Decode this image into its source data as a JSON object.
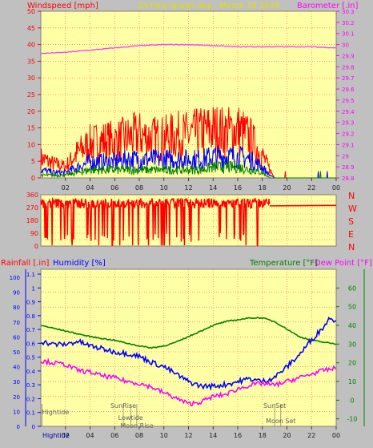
{
  "header": {
    "left": "Windspeed [mph]",
    "center": "24 hour graph day : March 18 2018",
    "right": "Barometer [.in]"
  },
  "colors": {
    "bg": "#c0c0c0",
    "plot": "#ffffa6",
    "grid": "#e06060",
    "header_text": "#ff0000",
    "title_text": "#e0e000",
    "baro_text": "#ff00ff",
    "wind_gust": "#ff0000",
    "wind_avg": "#0000ff",
    "wind_low": "#008000",
    "baro_line": "#ff40ff",
    "dir_line": "#ff0000",
    "humidity": "#0000ff",
    "temperature": "#008000",
    "dewpoint": "#ff00ff",
    "rain_text": "#ff0000",
    "hum_text": "#0000ff",
    "temp_text": "#008000",
    "dew_text": "#ff00ff",
    "event_text": "#606060",
    "axis_red": "#ff0000",
    "axis_blue": "#0000ff",
    "axis_green": "#008000",
    "axis_magenta": "#ff00ff"
  },
  "time_labels": [
    "02",
    "04",
    "06",
    "08",
    "10",
    "12",
    "14",
    "16",
    "18",
    "20",
    "22",
    "00"
  ],
  "lower_time_labels": [
    "02",
    "04",
    "06",
    "08",
    "10",
    "12",
    "14",
    "16",
    "18",
    "20",
    "22",
    "00"
  ],
  "chart_data": [
    {
      "type": "line",
      "name": "wind-barometer",
      "x_unit": "hour",
      "xlim": [
        0,
        24
      ],
      "ylabel": "Windspeed [mph]",
      "ylim": [
        0,
        50
      ],
      "y_ticks": [
        0,
        5,
        10,
        15,
        20,
        25,
        30,
        35,
        40,
        45,
        50
      ],
      "y2label": "Barometer [.in]",
      "y2lim": [
        28.8,
        30.3
      ],
      "y2_ticks": [
        "28.8",
        "28.9",
        "29",
        "29.1",
        "29.2",
        "29.3",
        "29.4",
        "29.5",
        "29.6",
        "29.7",
        "29.8",
        "29.9",
        "30",
        "30.1",
        "30.2",
        "30.3"
      ],
      "gust_envelope": {
        "x": [
          0,
          1,
          2,
          3,
          4,
          5,
          6,
          7,
          8,
          9,
          10,
          11,
          12,
          13,
          14,
          15,
          16,
          17,
          18,
          18.6,
          19,
          24
        ],
        "y": [
          7,
          5,
          4,
          9,
          12,
          13,
          13,
          14,
          15,
          14,
          14,
          15,
          15,
          16,
          17,
          16,
          17,
          14,
          8,
          3,
          0,
          0
        ]
      },
      "avg_envelope": {
        "x": [
          0,
          1,
          2,
          3,
          4,
          5,
          6,
          7,
          8,
          9,
          10,
          11,
          12,
          13,
          14,
          15,
          16,
          17,
          18,
          18.6,
          19,
          24
        ],
        "y": [
          3,
          2,
          2,
          4,
          6,
          6,
          6,
          7,
          7,
          7,
          7,
          7,
          7,
          7,
          8,
          8,
          8,
          7,
          4,
          1,
          0,
          0
        ]
      },
      "low_envelope": {
        "x": [
          0,
          1,
          2,
          3,
          4,
          5,
          6,
          7,
          8,
          9,
          10,
          11,
          12,
          13,
          14,
          15,
          16,
          17,
          18,
          18.6,
          19,
          24
        ],
        "y": [
          1,
          1,
          1,
          2,
          3,
          3,
          3,
          3,
          3,
          3,
          3,
          3,
          3,
          3,
          4,
          4,
          4,
          3,
          2,
          0,
          0,
          0
        ]
      },
      "barometer": {
        "x": [
          0,
          2,
          4,
          6,
          8,
          10,
          12,
          14,
          16,
          18,
          20,
          22,
          24
        ],
        "y": [
          29.92,
          29.93,
          29.95,
          29.97,
          29.99,
          30.0,
          30.0,
          29.99,
          29.98,
          29.98,
          29.98,
          29.98,
          29.97
        ]
      }
    },
    {
      "type": "line",
      "name": "wind-direction",
      "x_unit": "hour",
      "xlim": [
        0,
        24
      ],
      "ylim": [
        0,
        360
      ],
      "y_ticks": [
        0,
        45,
        90,
        135,
        180,
        225,
        270,
        315,
        360
      ],
      "right_labels": [
        "N",
        "W",
        "S",
        "E",
        "N"
      ],
      "direction": {
        "x": [
          0,
          18.6,
          18.6,
          24
        ],
        "y": [
          300,
          300,
          280,
          285
        ],
        "active_until": 18.6
      }
    },
    {
      "type": "line",
      "name": "humidity-temperature",
      "x_unit": "hour",
      "xlim": [
        0,
        24
      ],
      "left_label": "Rainfall [.in]",
      "left2_label": "Humidity [%]",
      "rain_ticks": [
        "0",
        "0.1",
        "0.2",
        "0.3",
        "0.4",
        "0.5",
        "0.6",
        "0.7",
        "0.8",
        "0.9",
        "1",
        "1.1"
      ],
      "humidity_ticks": [
        0,
        10,
        20,
        30,
        40,
        50,
        60,
        70,
        80,
        90,
        100
      ],
      "humidity_lim": [
        0,
        100
      ],
      "right_label": "Temperature [°F]",
      "right2_label": "Dew Point [°F]",
      "temp_ticks": [
        -10,
        0,
        10,
        20,
        30,
        40,
        50,
        60
      ],
      "temp_lim": [
        -14,
        70
      ],
      "humidity": {
        "x": [
          0,
          1,
          2,
          3,
          4,
          5,
          6,
          7,
          8,
          9,
          10,
          11,
          12,
          13,
          14,
          15,
          16,
          17,
          18,
          19,
          20,
          21,
          22,
          23,
          23.5,
          24
        ],
        "y": [
          57,
          55,
          55,
          57,
          54,
          52,
          50,
          49,
          47,
          43,
          40,
          35,
          30,
          27,
          27,
          28,
          30,
          32,
          30,
          33,
          40,
          48,
          58,
          67,
          73,
          71
        ]
      },
      "temperature": {
        "x": [
          0,
          2,
          4,
          6,
          8,
          9,
          10,
          11,
          12,
          13,
          14,
          15,
          16,
          17,
          18,
          19,
          20,
          21,
          22,
          23,
          24
        ],
        "y": [
          40,
          37,
          34,
          32,
          29,
          28,
          29,
          31,
          34,
          37,
          40,
          42,
          43,
          44,
          44,
          42,
          38,
          34,
          32,
          31,
          30
        ]
      },
      "dewpoint": {
        "x": [
          0,
          1,
          2,
          3,
          4,
          5,
          6,
          7,
          8,
          9,
          10,
          11,
          12,
          13,
          14,
          15,
          16,
          17,
          18,
          19,
          20,
          21,
          22,
          23,
          24
        ],
        "y": [
          21,
          20,
          19,
          16,
          15,
          13,
          12,
          10,
          9,
          7,
          4,
          1,
          -2,
          -1,
          2,
          3,
          6,
          8,
          9,
          8,
          10,
          12,
          14,
          16,
          17
        ]
      },
      "events": [
        {
          "label": "Hightide",
          "hour": 0.1,
          "level": 1
        },
        {
          "label": "SunRise",
          "hour": 6.7,
          "level": 0
        },
        {
          "label": "Lowtide",
          "hour": 7.3,
          "level": 2
        },
        {
          "label": "Moon Rise",
          "hour": 7.8,
          "level": 3
        },
        {
          "label": "SunSet",
          "hour": 19.0,
          "level": 0
        },
        {
          "label": "Moon Set",
          "hour": 19.5,
          "level": 4
        }
      ],
      "footer_first": "Hightide"
    }
  ]
}
